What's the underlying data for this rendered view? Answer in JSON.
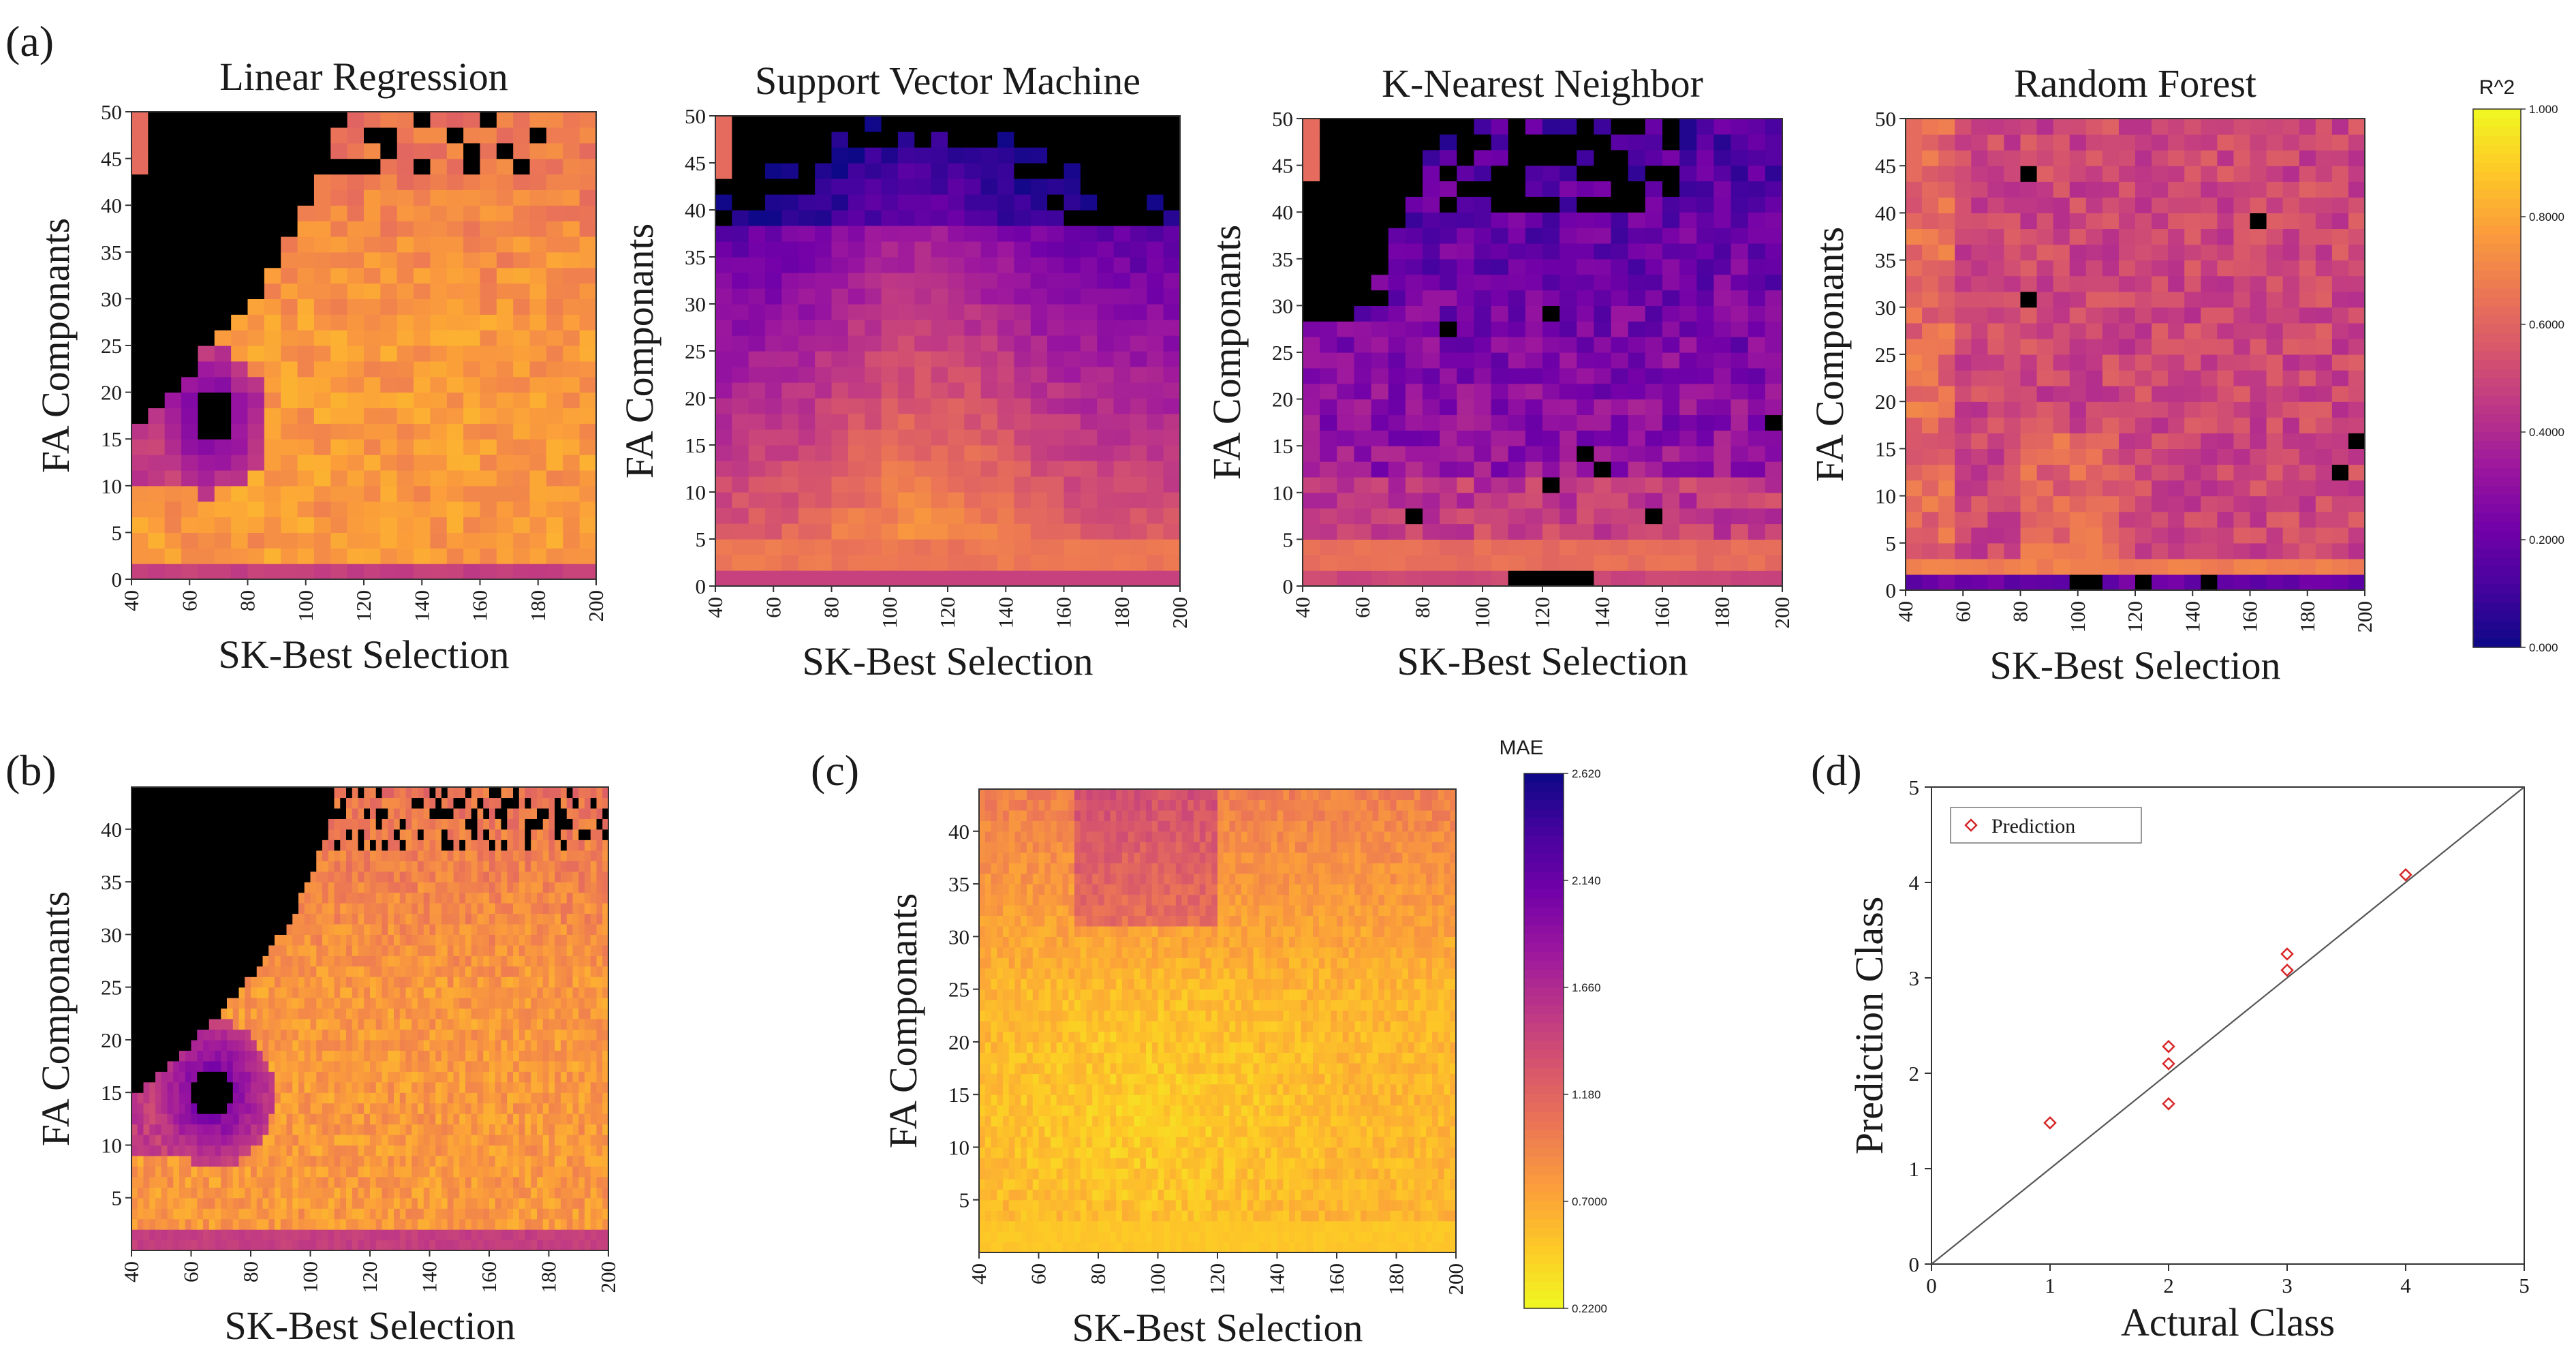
{
  "figure": {
    "panel_labels": [
      "(a)",
      "(b)",
      "(c)",
      "(d)"
    ]
  },
  "colors": {
    "colormap": [
      "#0d0887",
      "#46039f",
      "#7201a8",
      "#9c179e",
      "#bd3786",
      "#d8576b",
      "#ed7953",
      "#fb9f3a",
      "#fdca26",
      "#f0f921"
    ],
    "void": "#000000",
    "scatter": "#d62728",
    "axis": "#333333"
  },
  "chart_data": [
    {
      "id": "a1",
      "type": "heatmap",
      "title": "Linear Regression",
      "xlabel": "SK-Best Selection",
      "ylabel": "FA Componants",
      "xlim": [
        40,
        200
      ],
      "ylim": [
        0,
        50
      ],
      "xticks": [
        "40",
        "60",
        "80",
        "100",
        "120",
        "140",
        "160",
        "180",
        "200"
      ],
      "yticks": [
        "0",
        "5",
        "10",
        "15",
        "20",
        "25",
        "30",
        "35",
        "40",
        "45",
        "50"
      ],
      "metric": "R^2",
      "pattern": "lr",
      "cols": 28,
      "rows": 30
    },
    {
      "id": "a2",
      "type": "heatmap",
      "title": "Support Vector Machine",
      "xlabel": "SK-Best Selection",
      "ylabel": "FA Componants",
      "xlim": [
        40,
        200
      ],
      "ylim": [
        0,
        50
      ],
      "xticks": [
        "40",
        "60",
        "80",
        "100",
        "120",
        "140",
        "160",
        "180",
        "200"
      ],
      "yticks": [
        "0",
        "5",
        "10",
        "15",
        "20",
        "25",
        "30",
        "35",
        "40",
        "45",
        "50"
      ],
      "metric": "R^2",
      "pattern": "svm",
      "cols": 28,
      "rows": 30
    },
    {
      "id": "a3",
      "type": "heatmap",
      "title": "K-Nearest Neighbor",
      "xlabel": "SK-Best Selection",
      "ylabel": "FA Componants",
      "xlim": [
        40,
        200
      ],
      "ylim": [
        0,
        50
      ],
      "xticks": [
        "40",
        "60",
        "80",
        "100",
        "120",
        "140",
        "160",
        "180",
        "200"
      ],
      "yticks": [
        "0",
        "5",
        "10",
        "15",
        "20",
        "25",
        "30",
        "35",
        "40",
        "45",
        "50"
      ],
      "metric": "R^2",
      "pattern": "knn",
      "cols": 28,
      "rows": 30
    },
    {
      "id": "a4",
      "type": "heatmap",
      "title": "Random Forest",
      "xlabel": "SK-Best Selection",
      "ylabel": "FA Componants",
      "xlim": [
        40,
        200
      ],
      "ylim": [
        0,
        50
      ],
      "xticks": [
        "40",
        "60",
        "80",
        "100",
        "120",
        "140",
        "160",
        "180",
        "200"
      ],
      "yticks": [
        "0",
        "5",
        "10",
        "15",
        "20",
        "25",
        "30",
        "35",
        "40",
        "45",
        "50"
      ],
      "metric": "R^2",
      "pattern": "rf",
      "cols": 28,
      "rows": 30
    },
    {
      "id": "b",
      "type": "heatmap",
      "title": "",
      "xlabel": "SK-Best Selection",
      "ylabel": "FA Componants",
      "xlim": [
        40,
        200
      ],
      "ylim": [
        0,
        44
      ],
      "xticks": [
        "40",
        "60",
        "80",
        "100",
        "120",
        "140",
        "160",
        "180",
        "200"
      ],
      "yticks": [
        "5",
        "10",
        "15",
        "20",
        "25",
        "30",
        "35",
        "40"
      ],
      "metric": "R^2",
      "pattern": "lr",
      "cols": 80,
      "rows": 44
    },
    {
      "id": "c",
      "type": "heatmap",
      "title": "",
      "xlabel": "SK-Best Selection",
      "ylabel": "FA Componants",
      "xlim": [
        40,
        200
      ],
      "ylim": [
        0,
        44
      ],
      "xticks": [
        "40",
        "60",
        "80",
        "100",
        "120",
        "140",
        "160",
        "180",
        "200"
      ],
      "yticks": [
        "5",
        "10",
        "15",
        "20",
        "25",
        "30",
        "35",
        "40"
      ],
      "metric": "MAE",
      "pattern": "mae",
      "cols": 80,
      "rows": 44
    },
    {
      "id": "colorbar_r2",
      "type": "colorbar",
      "title": "R^2",
      "range": [
        0.0,
        1.0
      ],
      "ticks": [
        "1.000",
        "0.8000",
        "0.6000",
        "0.4000",
        "0.2000",
        "0.000"
      ]
    },
    {
      "id": "colorbar_mae",
      "type": "colorbar",
      "title": "MAE",
      "range": [
        0.22,
        2.62
      ],
      "reversed": true,
      "ticks": [
        "2.620",
        "2.140",
        "1.660",
        "1.180",
        "0.7000",
        "0.2200"
      ]
    },
    {
      "id": "d",
      "type": "scatter",
      "xlabel": "Actural Class",
      "ylabel": "Prediction Class",
      "xlim": [
        0,
        5
      ],
      "ylim": [
        0,
        5
      ],
      "xticks": [
        "0",
        "1",
        "2",
        "3",
        "4",
        "5"
      ],
      "yticks": [
        "0",
        "1",
        "2",
        "3",
        "4",
        "5"
      ],
      "legend": "Prediction",
      "legend_position": "top-left",
      "identity_line": true,
      "points": [
        {
          "x": 1,
          "y": 1.48
        },
        {
          "x": 2,
          "y": 1.68
        },
        {
          "x": 2,
          "y": 2.1
        },
        {
          "x": 2,
          "y": 2.28
        },
        {
          "x": 3,
          "y": 3.08
        },
        {
          "x": 3,
          "y": 3.25
        },
        {
          "x": 4,
          "y": 4.08
        }
      ]
    }
  ]
}
